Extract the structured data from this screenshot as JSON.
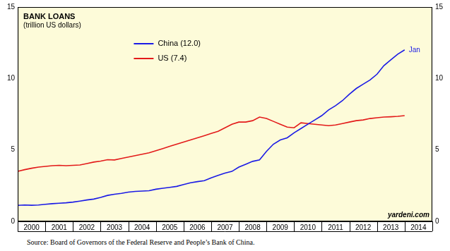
{
  "chart_data": {
    "type": "line",
    "title": "BANK LOANS",
    "subtitle": "(trillion US dollars)",
    "source": "Source: Board of Governors of the Federal Reserve and People’s Bank of China.",
    "watermark": "yardeni.com",
    "annotations": [
      {
        "text": "Jan",
        "x": 2014,
        "y": 12.0
      }
    ],
    "x": [
      2000,
      2000.25,
      2000.5,
      2000.75,
      2001,
      2001.25,
      2001.5,
      2001.75,
      2002,
      2002.25,
      2002.5,
      2002.75,
      2003,
      2003.25,
      2003.5,
      2003.75,
      2004,
      2004.25,
      2004.5,
      2004.75,
      2005,
      2005.25,
      2005.5,
      2005.75,
      2006,
      2006.25,
      2006.5,
      2006.75,
      2007,
      2007.25,
      2007.5,
      2007.75,
      2008,
      2008.25,
      2008.5,
      2008.75,
      2009,
      2009.25,
      2009.5,
      2009.75,
      2010,
      2010.25,
      2010.5,
      2010.75,
      2011,
      2011.25,
      2011.5,
      2011.75,
      2012,
      2012.25,
      2012.5,
      2012.75,
      2013,
      2013.25,
      2013.5,
      2013.75,
      2014
    ],
    "series": [
      {
        "name": "China (12.0)",
        "color": "#1a1ae6",
        "marker": "none",
        "line_style": "solid",
        "values": [
          1.12,
          1.15,
          1.13,
          1.15,
          1.2,
          1.24,
          1.27,
          1.3,
          1.35,
          1.42,
          1.5,
          1.56,
          1.68,
          1.82,
          1.9,
          1.96,
          2.05,
          2.1,
          2.12,
          2.15,
          2.25,
          2.32,
          2.38,
          2.45,
          2.58,
          2.7,
          2.78,
          2.85,
          3.05,
          3.22,
          3.38,
          3.5,
          3.8,
          4.0,
          4.2,
          4.3,
          4.9,
          5.4,
          5.7,
          5.85,
          6.2,
          6.5,
          6.8,
          7.1,
          7.4,
          7.8,
          8.1,
          8.45,
          8.9,
          9.3,
          9.6,
          9.9,
          10.3,
          10.9,
          11.3,
          11.7,
          12.0
        ]
      },
      {
        "name": "US (7.4)",
        "color": "#e31a1a",
        "marker": "none",
        "line_style": "solid",
        "values": [
          3.5,
          3.62,
          3.72,
          3.8,
          3.85,
          3.9,
          3.92,
          3.9,
          3.92,
          3.95,
          4.05,
          4.15,
          4.22,
          4.32,
          4.3,
          4.4,
          4.5,
          4.6,
          4.7,
          4.8,
          4.95,
          5.1,
          5.25,
          5.4,
          5.55,
          5.7,
          5.85,
          6.0,
          6.15,
          6.3,
          6.55,
          6.8,
          6.95,
          6.95,
          7.05,
          7.3,
          7.2,
          7.0,
          6.8,
          6.6,
          6.55,
          6.9,
          6.85,
          6.8,
          6.75,
          6.7,
          6.75,
          6.85,
          6.95,
          7.05,
          7.1,
          7.2,
          7.25,
          7.3,
          7.32,
          7.35,
          7.4
        ]
      }
    ],
    "xlim": [
      2000,
      2015
    ],
    "xticks": [
      {
        "value": 2000.5,
        "label": "2000"
      },
      {
        "value": 2001.5,
        "label": "2001"
      },
      {
        "value": 2002.5,
        "label": "2002"
      },
      {
        "value": 2003.5,
        "label": "2003"
      },
      {
        "value": 2004.5,
        "label": "2004"
      },
      {
        "value": 2005.5,
        "label": "2005"
      },
      {
        "value": 2006.5,
        "label": "2006"
      },
      {
        "value": 2007.5,
        "label": "2007"
      },
      {
        "value": 2008.5,
        "label": "2008"
      },
      {
        "value": 2009.5,
        "label": "2009"
      },
      {
        "value": 2010.5,
        "label": "2010"
      },
      {
        "value": 2011.5,
        "label": "2011"
      },
      {
        "value": 2012.5,
        "label": "2012"
      },
      {
        "value": 2013.5,
        "label": "2013"
      },
      {
        "value": 2014.5,
        "label": "2014"
      }
    ],
    "ylim": [
      0,
      15
    ],
    "yticks": [
      0,
      5,
      10,
      15
    ],
    "y2lim": [
      0,
      15
    ],
    "y2ticks": [
      0,
      5,
      10,
      15
    ],
    "grid": false,
    "legend": "upper left"
  }
}
